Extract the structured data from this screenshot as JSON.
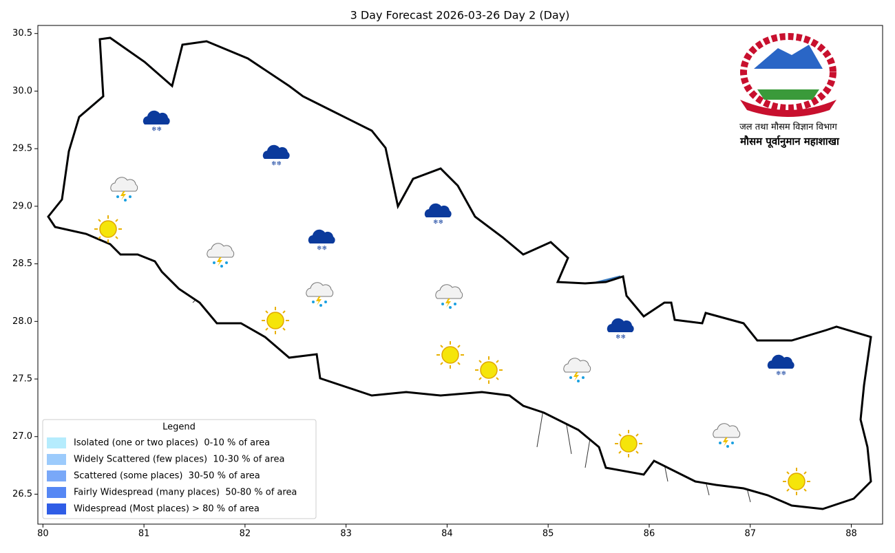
{
  "title": "3 Day Forecast 2026-03-26 Day 2 (Day)",
  "map": {
    "xlim": [
      79.95,
      88.31
    ],
    "ylim": [
      26.24,
      30.57
    ],
    "xticks": [
      80,
      81,
      82,
      83,
      84,
      85,
      86,
      87,
      88
    ],
    "yticks": [
      26.5,
      {
        "value": 27.0,
        "label": "27.0"
      },
      27.5,
      {
        "value": 28.0,
        "label": "28.0"
      },
      28.5,
      {
        "value": 29.0,
        "label": "29.0"
      },
      29.5,
      {
        "value": 30.0,
        "label": "30.0"
      },
      30.5
    ]
  },
  "legend": {
    "title": "Legend",
    "items": [
      {
        "label": "Isolated (one or two places)  0-10 % of area",
        "color": "#b5ecfd"
      },
      {
        "label": "Widely Scattered (few places)  10-30 % of area",
        "color": "#9ccbfc"
      },
      {
        "label": "Scattered (some places)  30-50 % of area",
        "color": "#79a8f8"
      },
      {
        "label": "Fairly Widespread (many places)  50-80 % of area",
        "color": "#5587f4"
      },
      {
        "label": "Widespread (Most places) > 80 % of area",
        "color": "#2f5de6"
      }
    ]
  },
  "logo": {
    "department": "जल तथा मौसम विज्ञान विभाग",
    "division": "मौसम पूर्वानुमान महाशाखा"
  }
}
